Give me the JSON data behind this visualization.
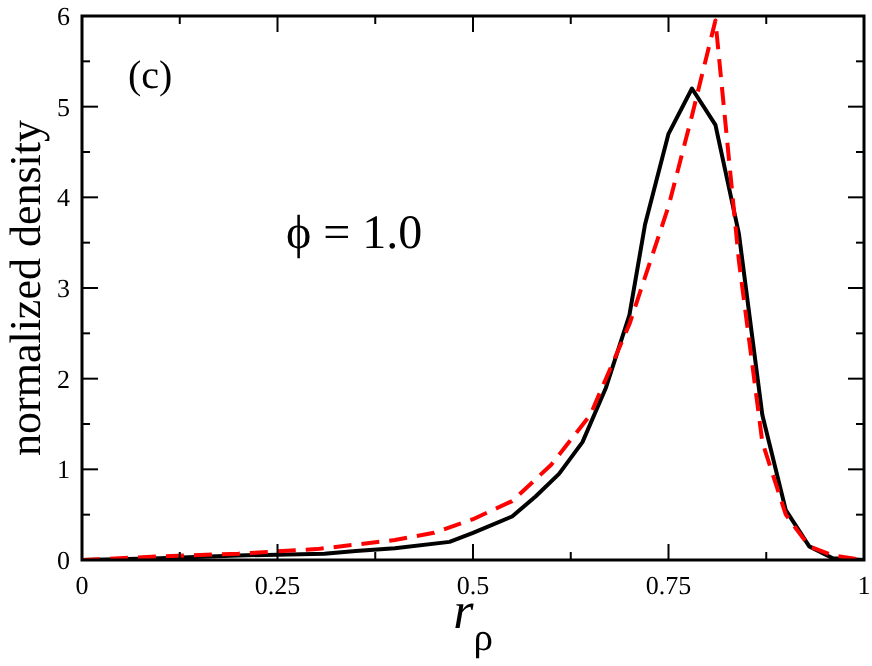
{
  "chart_data": {
    "type": "line",
    "xlabel": "r$_{ρ}$",
    "ylabel": "normalized density",
    "annotations": [
      "(c)",
      "ϕ = 1.0"
    ],
    "xlim": [
      0,
      1
    ],
    "ylim": [
      0,
      6
    ],
    "xticks": [
      0,
      {
        "value": 0.125,
        "label": null
      },
      0.25,
      {
        "value": 0.375,
        "label": null
      },
      0.5,
      {
        "value": 0.625,
        "label": null
      },
      0.75,
      {
        "value": 0.875,
        "label": null
      },
      1
    ],
    "yticks": [
      0,
      {
        "value": 0.5,
        "label": null
      },
      1,
      {
        "value": 1.5,
        "label": null
      },
      2,
      {
        "value": 2.5,
        "label": null
      },
      3,
      {
        "value": 3.5,
        "label": null
      },
      4,
      {
        "value": 4.5,
        "label": null
      },
      5,
      {
        "value": 5.5,
        "label": null
      },
      6
    ],
    "grid": false,
    "series": [
      {
        "color": "#000000",
        "line_style": "solid",
        "x": [
          0,
          0.1,
          0.2,
          0.31,
          0.35,
          0.4,
          0.47,
          0.5,
          0.55,
          0.58,
          0.61,
          0.64,
          0.67,
          0.7,
          0.72,
          0.75,
          0.78,
          0.81,
          0.84,
          0.87,
          0.9,
          0.93,
          0.96,
          1
        ],
        "values": [
          0,
          0.02,
          0.05,
          0.07,
          0.1,
          0.13,
          0.2,
          0.3,
          0.48,
          0.7,
          0.95,
          1.3,
          1.9,
          2.7,
          3.7,
          4.7,
          5.2,
          4.8,
          3.6,
          1.6,
          0.55,
          0.15,
          0.02,
          0
        ]
      },
      {
        "color": "#ff0000",
        "line_style": "dashed",
        "x": [
          0,
          0.1,
          0.2,
          0.3,
          0.4,
          0.45,
          0.5,
          0.55,
          0.6,
          0.65,
          0.7,
          0.75,
          0.78,
          0.81,
          0.84,
          0.87,
          0.9,
          0.93,
          0.96,
          1
        ],
        "values": [
          0,
          0.04,
          0.07,
          0.12,
          0.22,
          0.3,
          0.45,
          0.65,
          1.05,
          1.6,
          2.6,
          3.9,
          4.9,
          5.95,
          3.3,
          1.3,
          0.5,
          0.15,
          0.05,
          0
        ]
      }
    ]
  }
}
